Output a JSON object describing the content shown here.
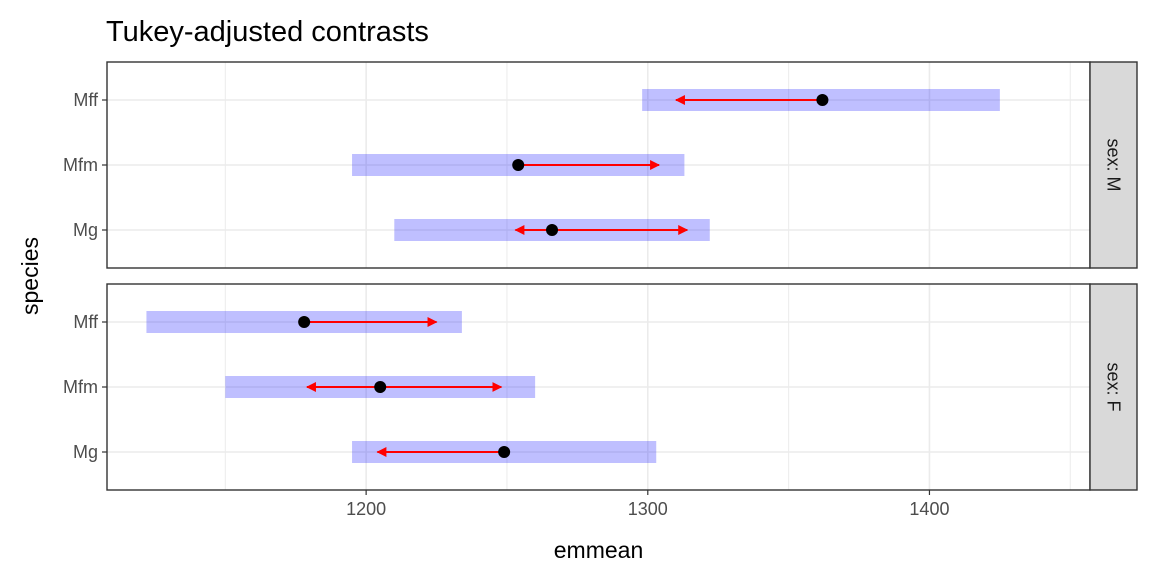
{
  "chart_data": {
    "type": "scatter",
    "title": "Tukey-adjusted contrasts",
    "xlabel": "emmean",
    "ylabel": "species",
    "xlim": [
      1108,
      1457
    ],
    "x_ticks": [
      1200,
      1300,
      1400
    ],
    "x_tick_labels": [
      "1200",
      "1300",
      "1400"
    ],
    "grid": true,
    "colors": {
      "ci_band": "#0000ff",
      "arrow": "#ff0000",
      "point": "#000000",
      "strip_fill": "#d9d9d9",
      "panel_border": "#333333",
      "grid": "#ebebeb"
    },
    "panels": [
      {
        "strip_label": "sex: M",
        "categories": [
          "Mff",
          "Mfm",
          "Mg"
        ],
        "points": [
          {
            "species": "Mff",
            "emmean": 1362,
            "lower_CL": 1298,
            "upper_CL": 1425,
            "arrow_left": 1310,
            "arrow_right": null
          },
          {
            "species": "Mfm",
            "emmean": 1254,
            "lower_CL": 1195,
            "upper_CL": 1313,
            "arrow_left": null,
            "arrow_right": 1304
          },
          {
            "species": "Mg",
            "emmean": 1266,
            "lower_CL": 1210,
            "upper_CL": 1322,
            "arrow_left": 1253,
            "arrow_right": 1314
          }
        ]
      },
      {
        "strip_label": "sex: F",
        "categories": [
          "Mff",
          "Mfm",
          "Mg"
        ],
        "points": [
          {
            "species": "Mff",
            "emmean": 1178,
            "lower_CL": 1122,
            "upper_CL": 1234,
            "arrow_left": null,
            "arrow_right": 1225
          },
          {
            "species": "Mfm",
            "emmean": 1205,
            "lower_CL": 1150,
            "upper_CL": 1260,
            "arrow_left": 1179,
            "arrow_right": 1248
          },
          {
            "species": "Mg",
            "emmean": 1249,
            "lower_CL": 1195,
            "upper_CL": 1303,
            "arrow_left": 1204,
            "arrow_right": null
          }
        ]
      }
    ]
  }
}
